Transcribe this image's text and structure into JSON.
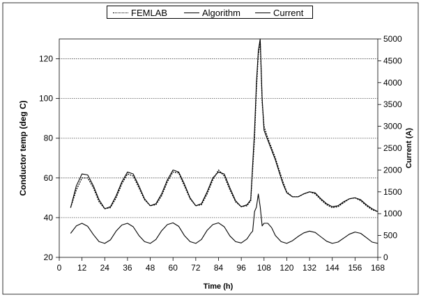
{
  "chart_data": {
    "type": "line",
    "title": "",
    "xlabel": "Time (h)",
    "ylabel": "Conductor temp (deg C)",
    "y2label": "Current (A)",
    "xlim": [
      0,
      168
    ],
    "ylim": [
      20,
      130
    ],
    "y2lim": [
      0,
      5000
    ],
    "xticks": [
      0,
      12,
      24,
      36,
      48,
      60,
      72,
      84,
      96,
      108,
      120,
      132,
      144,
      156,
      168
    ],
    "yticks": [
      20,
      40,
      60,
      80,
      100,
      120
    ],
    "y2ticks": [
      0,
      500,
      1000,
      1500,
      2000,
      2500,
      3000,
      3500,
      4000,
      4500,
      5000
    ],
    "grid": "horizontal dotted at primary y ticks",
    "legend_position": "top-center",
    "series": [
      {
        "name": "FEMLAB",
        "axis": "left",
        "style": "dotted",
        "x": [
          6,
          9,
          12,
          15,
          18,
          21,
          24,
          27,
          30,
          33,
          36,
          39,
          42,
          45,
          48,
          51,
          54,
          57,
          60,
          63,
          66,
          69,
          72,
          75,
          78,
          81,
          84,
          87,
          90,
          93,
          96,
          99,
          101,
          103,
          104,
          105,
          106,
          107,
          108,
          110,
          112,
          114,
          116,
          118,
          120,
          123,
          126,
          129,
          132,
          135,
          138,
          141,
          144,
          147,
          150,
          153,
          156,
          159,
          162,
          165,
          168
        ],
        "y": [
          45,
          54,
          60,
          60,
          55,
          48,
          44.5,
          45,
          50,
          57,
          62,
          61,
          55,
          49,
          46,
          46.5,
          51,
          58,
          63,
          62.5,
          56,
          49.5,
          46,
          46.5,
          52,
          59,
          64,
          61,
          54,
          48,
          45.5,
          46,
          48.5,
          80,
          105,
          122,
          129,
          98,
          86,
          80,
          75,
          70,
          64,
          58,
          53,
          50.5,
          50.5,
          52,
          53,
          52,
          49,
          46.5,
          45,
          45.5,
          47.5,
          49.5,
          50,
          48.5,
          46,
          44,
          43
        ]
      },
      {
        "name": "Algorithm",
        "axis": "left",
        "style": "solid",
        "x": [
          6,
          9,
          12,
          15,
          18,
          21,
          24,
          27,
          30,
          33,
          36,
          39,
          42,
          45,
          48,
          51,
          54,
          57,
          60,
          63,
          66,
          69,
          72,
          75,
          78,
          81,
          84,
          87,
          90,
          93,
          96,
          99,
          101,
          103,
          104,
          105,
          106,
          107,
          108,
          110,
          112,
          114,
          116,
          118,
          120,
          123,
          126,
          129,
          132,
          135,
          138,
          141,
          144,
          147,
          150,
          153,
          156,
          159,
          162,
          165,
          168
        ],
        "y": [
          45,
          56,
          62,
          61.5,
          56,
          49,
          44.5,
          45.5,
          51,
          58,
          63,
          62,
          56,
          49.5,
          46,
          47,
          52,
          59,
          64,
          63,
          57,
          50,
          46,
          47,
          53,
          60,
          63,
          62,
          55,
          48.5,
          45.5,
          46.5,
          49,
          84,
          108,
          124,
          130,
          100,
          84,
          79,
          74,
          69,
          63,
          57,
          52.5,
          50.5,
          50.5,
          52,
          53,
          52.5,
          49.5,
          47,
          45.5,
          46,
          48,
          49.5,
          50,
          49,
          46.5,
          44.5,
          43
        ]
      },
      {
        "name": "Current",
        "axis": "right",
        "style": "solid",
        "x": [
          6,
          9,
          12,
          15,
          18,
          21,
          24,
          27,
          30,
          33,
          36,
          39,
          42,
          45,
          48,
          51,
          54,
          57,
          60,
          63,
          66,
          69,
          72,
          75,
          78,
          81,
          84,
          87,
          90,
          93,
          96,
          99,
          101,
          102,
          103,
          104,
          105,
          106,
          107,
          108,
          110,
          112,
          114,
          117,
          120,
          123,
          126,
          129,
          132,
          135,
          138,
          141,
          144,
          147,
          150,
          153,
          156,
          159,
          162,
          165,
          168
        ],
        "y": [
          550,
          720,
          780,
          710,
          520,
          360,
          320,
          400,
          600,
          740,
          780,
          700,
          500,
          360,
          320,
          410,
          610,
          750,
          790,
          710,
          500,
          360,
          320,
          410,
          620,
          750,
          790,
          700,
          490,
          360,
          330,
          420,
          550,
          600,
          1050,
          1150,
          1450,
          1160,
          720,
          780,
          780,
          680,
          500,
          360,
          320,
          380,
          480,
          560,
          600,
          570,
          470,
          370,
          320,
          350,
          440,
          530,
          580,
          550,
          450,
          350,
          320
        ]
      }
    ]
  }
}
